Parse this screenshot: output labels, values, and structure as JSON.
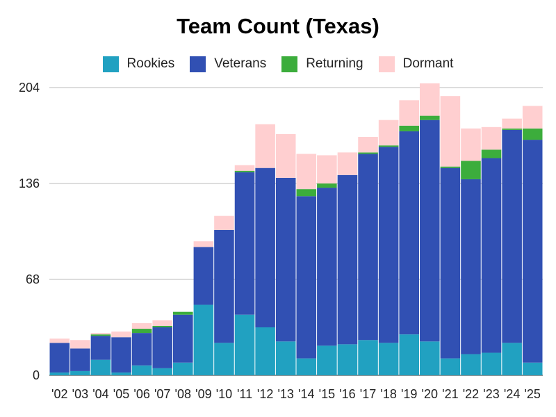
{
  "chart_data": {
    "type": "bar",
    "stacked": true,
    "title": "Team Count (Texas)",
    "xlabel": "",
    "ylabel": "",
    "ylim": [
      0,
      204
    ],
    "yticks": [
      0,
      68,
      136,
      204
    ],
    "grid": true,
    "legend_position": "top",
    "categories": [
      "'02",
      "'03",
      "'04",
      "'05",
      "'06",
      "'07",
      "'08",
      "'09",
      "'10",
      "'11",
      "'12",
      "'13",
      "'14",
      "'15",
      "'16",
      "'17",
      "'18",
      "'19",
      "'20",
      "'21",
      "'22",
      "'23",
      "'24",
      "'25"
    ],
    "series": [
      {
        "name": "Rookies",
        "color": "#21a1c1",
        "values": [
          2,
          3,
          11,
          2,
          7,
          5,
          9,
          50,
          23,
          43,
          34,
          24,
          12,
          21,
          22,
          25,
          23,
          29,
          24,
          12,
          15,
          16,
          23,
          9
        ]
      },
      {
        "name": "Veterans",
        "color": "#3150b3",
        "values": [
          21,
          16,
          17,
          25,
          23,
          29,
          34,
          41,
          80,
          101,
          113,
          116,
          115,
          112,
          120,
          132,
          139,
          144,
          157,
          135,
          124,
          138,
          151,
          158
        ]
      },
      {
        "name": "Returning",
        "color": "#3cad3c",
        "values": [
          0,
          0,
          1,
          0,
          3,
          1,
          2,
          0,
          0,
          1,
          0,
          0,
          5,
          3,
          0,
          1,
          1,
          4,
          3,
          1,
          13,
          6,
          1,
          8
        ]
      },
      {
        "name": "Dormant",
        "color": "#ffcfd0",
        "values": [
          3,
          6,
          1,
          4,
          4,
          4,
          0,
          4,
          10,
          4,
          31,
          31,
          25,
          20,
          16,
          11,
          18,
          18,
          23,
          50,
          23,
          16,
          7,
          16
        ]
      }
    ]
  }
}
